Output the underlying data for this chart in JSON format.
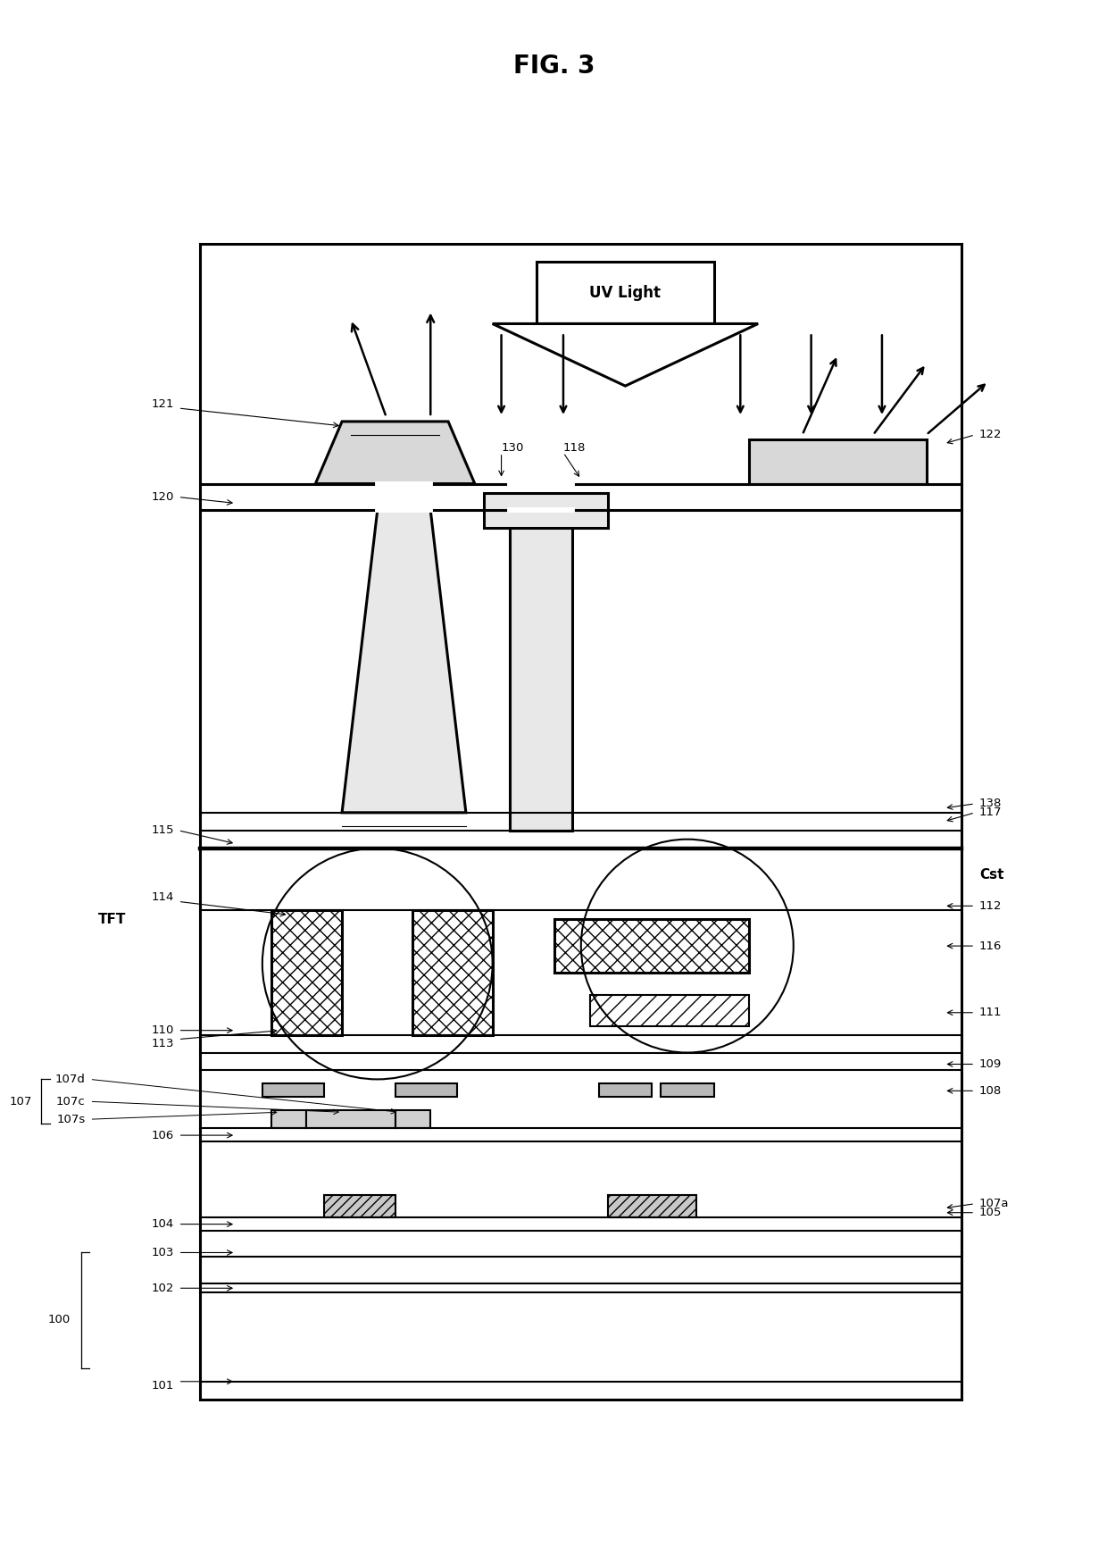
{
  "title": "FIG. 3",
  "bg_color": "#ffffff",
  "line_color": "#000000",
  "fig_width": 12.4,
  "fig_height": 17.5,
  "xlim": [
    0,
    124
  ],
  "ylim": [
    0,
    175
  ]
}
